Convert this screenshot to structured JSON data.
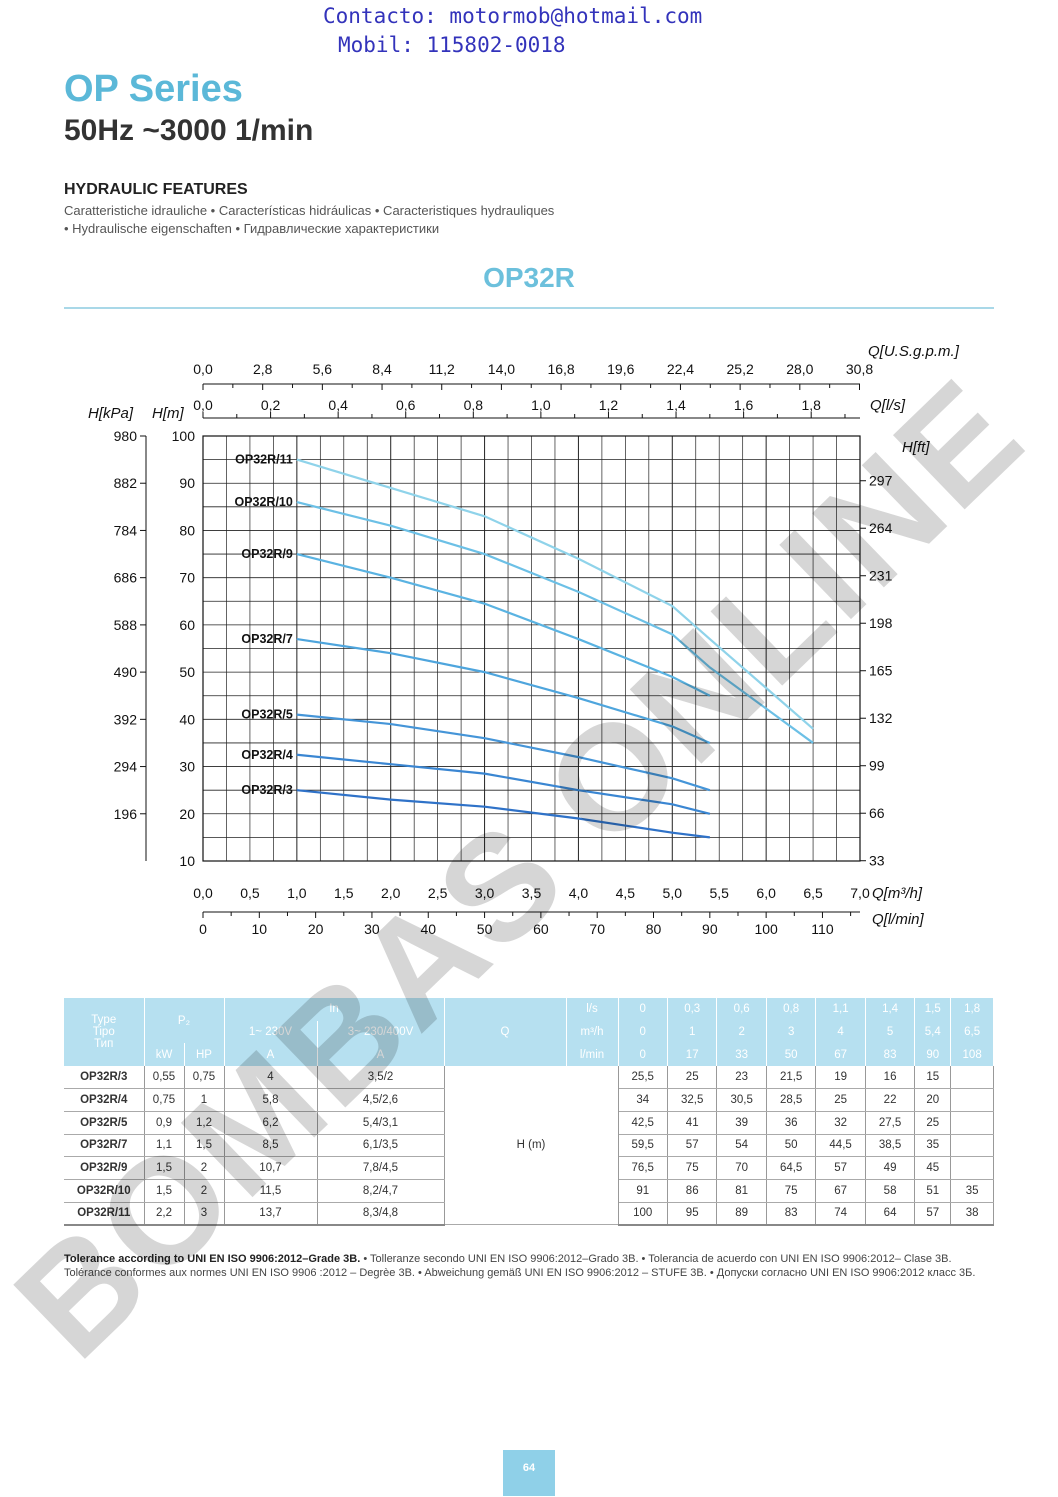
{
  "contact": {
    "email_line": "Contacto: motormob@hotmail.com",
    "phone_line": "Mobil: 115802-0018"
  },
  "header": {
    "series": "OP Series",
    "subtitle": "50Hz ~3000 1/min",
    "section": "HYDRAULIC FEATURES",
    "translations_1": "Caratteristiche idrauliche • Características hidráulicas • Caracteristiques hydrauliques",
    "translations_2": "• Hydraulische eigenschaften •  Гидравлические характеристики",
    "model": "OP32R"
  },
  "watermark": "BOMBAS ONLINE",
  "chart_data": {
    "type": "line",
    "x_unit_primary": "Q[m³/h]",
    "xlim": [
      0,
      7
    ],
    "ylim": [
      10,
      100
    ],
    "x_ticks": [
      "0,0",
      "0,5",
      "1,0",
      "1,5",
      "2,0",
      "2,5",
      "3,0",
      "3,5",
      "4,0",
      "4,5",
      "5,0",
      "5,5",
      "6,0",
      "6,5",
      "7,0"
    ],
    "x_lmin_label": "Q[l/min]",
    "x_lmin_ticks": [
      "0",
      "10",
      "20",
      "30",
      "40",
      "50",
      "60",
      "70",
      "80",
      "90",
      "100",
      "110"
    ],
    "x_ls_label": "Q[l/s]",
    "x_ls_ticks": [
      "0,0",
      "0,2",
      "0,4",
      "0,6",
      "0,8",
      "1,0",
      "1,2",
      "1,4",
      "1,6",
      "1,8"
    ],
    "x_usgpm_label": "Q[U.S.g.p.m.]",
    "x_usgpm_ticks": [
      "0,0",
      "2,8",
      "5,6",
      "8,4",
      "11,2",
      "14,0",
      "16,8",
      "19,6",
      "22,4",
      "25,2",
      "28,0",
      "30,8"
    ],
    "y_m_label": "H[m]",
    "y_m_ticks": [
      "10",
      "20",
      "30",
      "40",
      "50",
      "60",
      "70",
      "80",
      "90",
      "100"
    ],
    "y_kpa_label": "H[kPa]",
    "y_kpa_ticks": [
      "196",
      "294",
      "392",
      "490",
      "588",
      "686",
      "784",
      "882",
      "980"
    ],
    "y_ft_label": "H[ft]",
    "y_ft_ticks": [
      "33",
      "66",
      "99",
      "132",
      "165",
      "198",
      "231",
      "264",
      "297"
    ],
    "series": [
      {
        "name": "OP32R/3",
        "color": "#2f72c8",
        "x": [
          1,
          2,
          3,
          4,
          5,
          5.4
        ],
        "y": [
          25,
          23,
          21.5,
          19,
          16,
          15
        ]
      },
      {
        "name": "OP32R/4",
        "color": "#3a86d2",
        "x": [
          1,
          2,
          3,
          4,
          5,
          5.4
        ],
        "y": [
          32.5,
          30.5,
          28.5,
          25,
          22,
          20
        ]
      },
      {
        "name": "OP32R/5",
        "color": "#4595d8",
        "x": [
          1,
          2,
          3,
          4,
          5,
          5.4
        ],
        "y": [
          41,
          39,
          36,
          32,
          27.5,
          25
        ]
      },
      {
        "name": "OP32R/7",
        "color": "#4ea5dd",
        "x": [
          1,
          2,
          3,
          4,
          5,
          5.4
        ],
        "y": [
          57,
          54,
          50,
          44.5,
          38.5,
          35
        ]
      },
      {
        "name": "OP32R/9",
        "color": "#5ab3e2",
        "x": [
          1,
          2,
          3,
          4,
          5,
          5.4
        ],
        "y": [
          75,
          70,
          64.5,
          57,
          49,
          45
        ]
      },
      {
        "name": "OP32R/10",
        "color": "#6cc0e6",
        "x": [
          1,
          2,
          3,
          4,
          5,
          5.4,
          6.5
        ],
        "y": [
          86,
          81,
          75,
          67,
          58,
          51,
          35
        ]
      },
      {
        "name": "OP32R/11",
        "color": "#8fd3ea",
        "x": [
          1,
          2,
          3,
          4,
          5,
          5.4,
          6.5
        ],
        "y": [
          95,
          89,
          83,
          74,
          64,
          57,
          38
        ]
      }
    ]
  },
  "table": {
    "header": {
      "type": "Type",
      "tipo": "Tipo",
      "tip": "Тип",
      "p2": "P₂",
      "kw": "kW",
      "hp": "HP",
      "in": "In",
      "v230": "1~ 230V",
      "v400": "3~ 230/400V",
      "a1": "A",
      "a2": "A",
      "q": "Q",
      "ls": "l/s",
      "m3h": "m³/h",
      "lmin": "l/min",
      "ls_vals": [
        "0",
        "0,3",
        "0,6",
        "0,8",
        "1,1",
        "1,4",
        "1,5",
        "1,8"
      ],
      "m3h_vals": [
        "0",
        "1",
        "2",
        "3",
        "4",
        "5",
        "5,4",
        "6,5"
      ],
      "lmin_vals": [
        "0",
        "17",
        "33",
        "50",
        "67",
        "83",
        "90",
        "108"
      ]
    },
    "h_label": "H (m)",
    "rows": [
      {
        "type": "OP32R/3",
        "kw": "0,55",
        "hp": "0,75",
        "a1": "4",
        "a2": "3,5/2",
        "h": [
          "25,5",
          "25",
          "23",
          "21,5",
          "19",
          "16",
          "15",
          ""
        ]
      },
      {
        "type": "OP32R/4",
        "kw": "0,75",
        "hp": "1",
        "a1": "5,8",
        "a2": "4,5/2,6",
        "h": [
          "34",
          "32,5",
          "30,5",
          "28,5",
          "25",
          "22",
          "20",
          ""
        ]
      },
      {
        "type": "OP32R/5",
        "kw": "0,9",
        "hp": "1,2",
        "a1": "6,2",
        "a2": "5,4/3,1",
        "h": [
          "42,5",
          "41",
          "39",
          "36",
          "32",
          "27,5",
          "25",
          ""
        ]
      },
      {
        "type": "OP32R/7",
        "kw": "1,1",
        "hp": "1,5",
        "a1": "8,5",
        "a2": "6,1/3,5",
        "h": [
          "59,5",
          "57",
          "54",
          "50",
          "44,5",
          "38,5",
          "35",
          ""
        ]
      },
      {
        "type": "OP32R/9",
        "kw": "1,5",
        "hp": "2",
        "a1": "10,7",
        "a2": "7,8/4,5",
        "h": [
          "76,5",
          "75",
          "70",
          "64,5",
          "57",
          "49",
          "45",
          ""
        ]
      },
      {
        "type": "OP32R/10",
        "kw": "1,5",
        "hp": "2",
        "a1": "11,5",
        "a2": "8,2/4,7",
        "h": [
          "91",
          "86",
          "81",
          "75",
          "67",
          "58",
          "51",
          "35"
        ]
      },
      {
        "type": "OP32R/11",
        "kw": "2,2",
        "hp": "3",
        "a1": "13,7",
        "a2": "8,3/4,8",
        "h": [
          "100",
          "95",
          "89",
          "83",
          "74",
          "64",
          "57",
          "38"
        ]
      }
    ]
  },
  "tolerance": {
    "bold": "Tolerance according to UNI EN ISO 9906:2012–Grade 3B.",
    "rest": " •  Tolleranze secondo UNI EN ISO 9906:2012–Grado 3B. • Tolerancia de acuerdo con UNI EN ISO 9906:2012– Clase 3B. Tolérance conformes aux normes UNI EN ISO 9906 :2012 – Degrèe 3B. • Abweichung gemäß UNI EN ISO 9906:2012 – STUFE 3B. • Допуски согласно UNI EN ISO 9906:2012 класс 3Б."
  },
  "page_number": "64"
}
